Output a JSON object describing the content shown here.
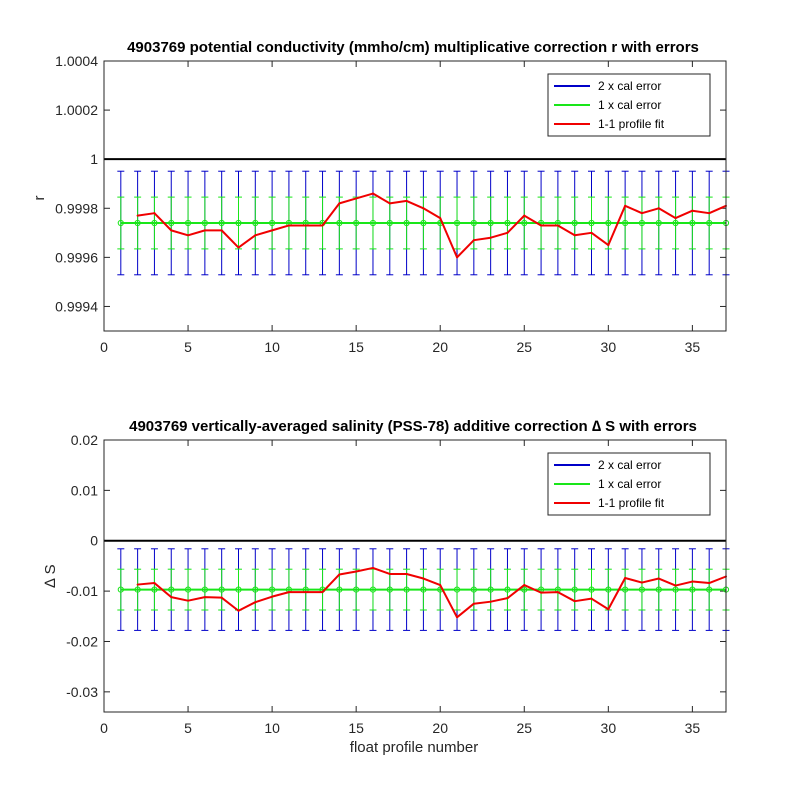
{
  "colors": {
    "two_cal": "#0000c8",
    "one_cal": "#19e619",
    "profile_fit": "#f00000",
    "frame": "#262626"
  },
  "chart_data": [
    {
      "type": "line",
      "title": "4903769 potential conductivity (mmho/cm) multiplicative correction r with errors",
      "xlabel": "",
      "ylabel": "r",
      "xlim": [
        0,
        37
      ],
      "ylim": [
        0.9993,
        1.0004
      ],
      "xticks": [
        0,
        5,
        10,
        15,
        20,
        25,
        30,
        35
      ],
      "yticks": [
        0.9994,
        0.9996,
        0.9998,
        1,
        1.0002,
        1.0004
      ],
      "ytick_labels": [
        "0.9994",
        "0.9996",
        "0.9998",
        "1",
        "1.0002",
        "1.0004"
      ],
      "reference_line": 1,
      "legend": {
        "position": "top-right",
        "entries": [
          "2 x cal error",
          "1 x cal error",
          "1-1 profile fit"
        ]
      },
      "errorbars": {
        "x": [
          1,
          2,
          3,
          4,
          5,
          6,
          7,
          8,
          9,
          10,
          11,
          12,
          13,
          14,
          15,
          16,
          17,
          18,
          19,
          20,
          21,
          22,
          23,
          24,
          25,
          26,
          27,
          28,
          29,
          30,
          31,
          32,
          33,
          34,
          35,
          36,
          37
        ],
        "center": 0.99974,
        "two_cal_halfwidth": 0.000211,
        "one_cal_halfwidth": 0.0001055
      },
      "series": [
        {
          "name": "1-1 profile fit",
          "x": [
            2,
            3,
            4,
            5,
            6,
            7,
            8,
            9,
            10,
            11,
            12,
            13,
            14,
            15,
            16,
            17,
            18,
            19,
            20,
            21,
            22,
            23,
            24,
            25,
            26,
            27,
            28,
            29,
            30,
            31,
            32,
            33,
            34,
            35,
            36,
            37
          ],
          "values": [
            0.99977,
            0.99978,
            0.99971,
            0.99969,
            0.99971,
            0.99971,
            0.99964,
            0.99969,
            0.99971,
            0.99973,
            0.99973,
            0.99973,
            0.99982,
            0.99984,
            0.99986,
            0.99982,
            0.99983,
            0.9998,
            0.99976,
            0.9996,
            0.99967,
            0.99968,
            0.9997,
            0.99977,
            0.99973,
            0.99973,
            0.99969,
            0.9997,
            0.99965,
            0.99981,
            0.99978,
            0.9998,
            0.99976,
            0.99979,
            0.99978,
            0.99981
          ]
        }
      ]
    },
    {
      "type": "line",
      "title": "4903769 vertically-averaged salinity (PSS-78) additive correction ∆ S with errors",
      "xlabel": "float profile number",
      "ylabel": "∆ S",
      "xlim": [
        0,
        37
      ],
      "ylim": [
        -0.034,
        0.02
      ],
      "xticks": [
        0,
        5,
        10,
        15,
        20,
        25,
        30,
        35
      ],
      "yticks": [
        -0.03,
        -0.02,
        -0.01,
        0,
        0.01,
        0.02
      ],
      "ytick_labels": [
        "-0.03",
        "-0.02",
        "-0.01",
        "0",
        "0.01",
        "0.02"
      ],
      "reference_line": 0,
      "legend": {
        "position": "top-right",
        "entries": [
          "2 x cal error",
          "1 x cal error",
          "1-1 profile fit"
        ]
      },
      "errorbars": {
        "x": [
          1,
          2,
          3,
          4,
          5,
          6,
          7,
          8,
          9,
          10,
          11,
          12,
          13,
          14,
          15,
          16,
          17,
          18,
          19,
          20,
          21,
          22,
          23,
          24,
          25,
          26,
          27,
          28,
          29,
          30,
          31,
          32,
          33,
          34,
          35,
          36,
          37
        ],
        "center": -0.0097,
        "two_cal_halfwidth": 0.0081,
        "one_cal_halfwidth": 0.00405
      },
      "series": [
        {
          "name": "1-1 profile fit",
          "x": [
            2,
            3,
            4,
            5,
            6,
            7,
            8,
            9,
            10,
            11,
            12,
            13,
            14,
            15,
            16,
            17,
            18,
            19,
            20,
            21,
            22,
            23,
            24,
            25,
            26,
            27,
            28,
            29,
            30,
            31,
            32,
            33,
            34,
            35,
            36,
            37
          ],
          "values": [
            -0.0087,
            -0.0084,
            -0.0112,
            -0.0119,
            -0.0112,
            -0.0113,
            -0.0139,
            -0.0122,
            -0.0111,
            -0.0102,
            -0.0102,
            -0.0102,
            -0.0067,
            -0.0061,
            -0.0054,
            -0.0066,
            -0.0066,
            -0.0075,
            -0.0088,
            -0.0152,
            -0.0125,
            -0.0121,
            -0.0114,
            -0.0088,
            -0.0103,
            -0.0102,
            -0.012,
            -0.0115,
            -0.0136,
            -0.0074,
            -0.0083,
            -0.0075,
            -0.0089,
            -0.0081,
            -0.0084,
            -0.0071
          ]
        }
      ]
    }
  ]
}
